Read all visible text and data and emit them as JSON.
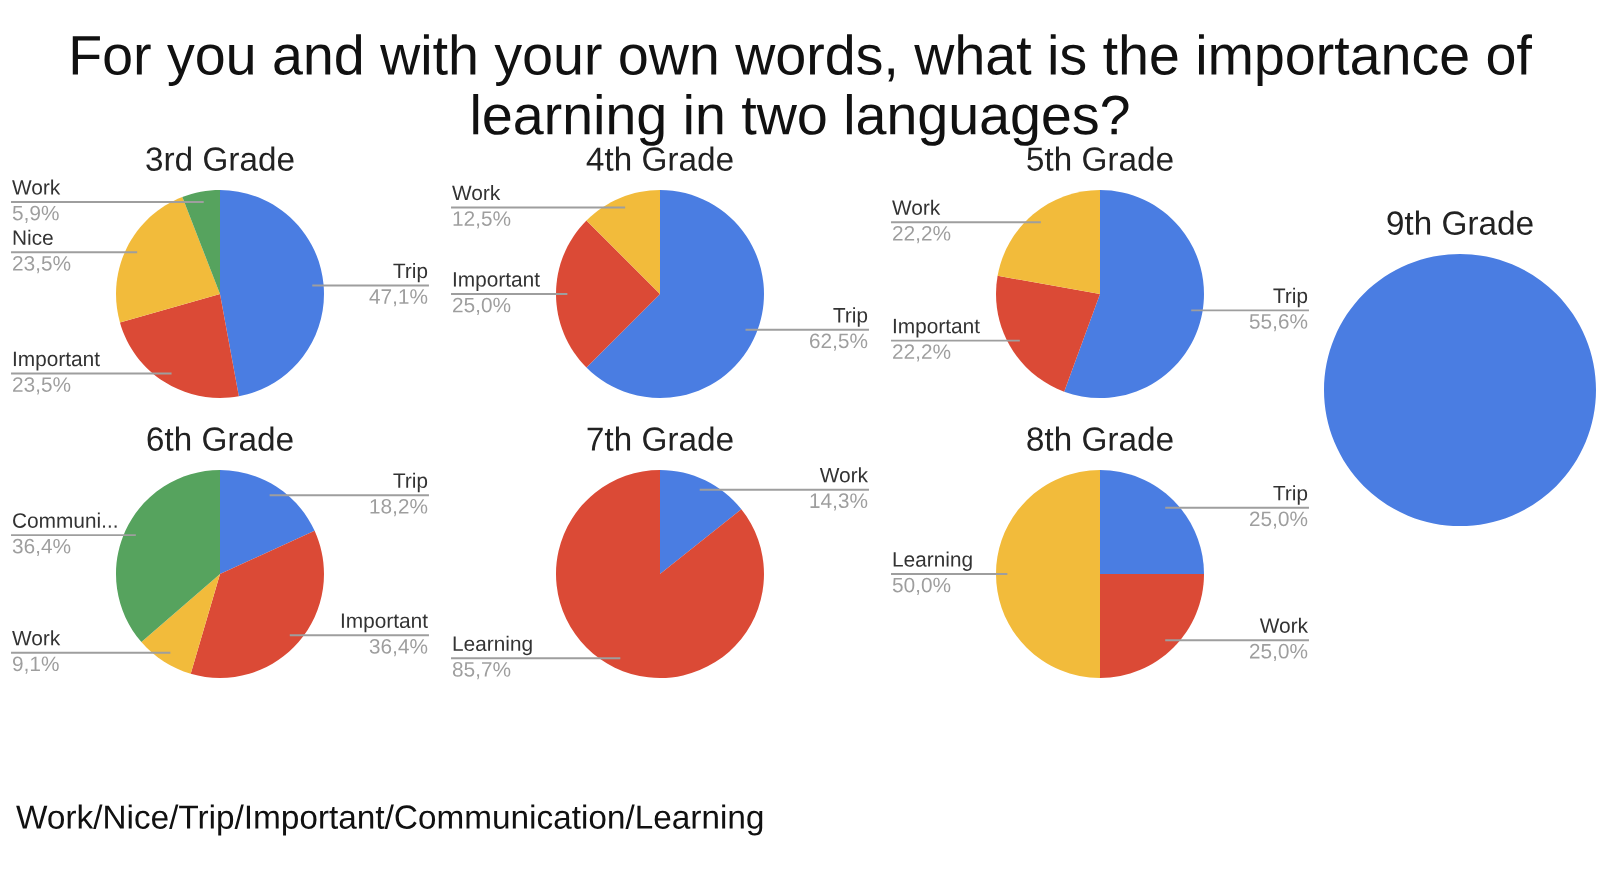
{
  "chart_data": [
    {
      "type": "pie",
      "title": "3rd Grade",
      "annotations": [
        "For you and with your own words, what is the importance of learning in two languages?",
        "Work/Nice/Trip/Important/Communication/Learning"
      ],
      "categories": [
        "Trip",
        "Important",
        "Nice",
        "Work"
      ],
      "values": [
        47.1,
        23.5,
        23.5,
        5.9
      ],
      "value_labels": [
        "47,1%",
        "23,5%",
        "23,5%",
        "5,9%"
      ],
      "colors": [
        "#4a7de2",
        "#db4a36",
        "#f2bb3b",
        "#56a35e"
      ]
    },
    {
      "type": "pie",
      "title": "4th Grade",
      "categories": [
        "Trip",
        "Important",
        "Work"
      ],
      "values": [
        62.5,
        25.0,
        12.5
      ],
      "value_labels": [
        "62,5%",
        "25,0%",
        "12,5%"
      ],
      "colors": [
        "#4a7de2",
        "#db4a36",
        "#f2bb3b"
      ]
    },
    {
      "type": "pie",
      "title": "5th Grade",
      "categories": [
        "Trip",
        "Important",
        "Work"
      ],
      "values": [
        55.6,
        22.2,
        22.2
      ],
      "value_labels": [
        "55,6%",
        "22,2%",
        "22,2%"
      ],
      "colors": [
        "#4a7de2",
        "#db4a36",
        "#f2bb3b"
      ]
    },
    {
      "type": "pie",
      "title": "6th Grade",
      "categories": [
        "Trip",
        "Important",
        "Work",
        "Communi..."
      ],
      "values": [
        18.2,
        36.4,
        9.1,
        36.4
      ],
      "value_labels": [
        "18,2%",
        "36,4%",
        "9,1%",
        "36,4%"
      ],
      "colors": [
        "#4a7de2",
        "#db4a36",
        "#f2bb3b",
        "#56a35e"
      ]
    },
    {
      "type": "pie",
      "title": "7th Grade",
      "categories": [
        "Work",
        "Learning"
      ],
      "values": [
        14.3,
        85.7
      ],
      "value_labels": [
        "14,3%",
        "85,7%"
      ],
      "colors": [
        "#4a7de2",
        "#db4a36"
      ]
    },
    {
      "type": "pie",
      "title": "8th Grade",
      "categories": [
        "Trip",
        "Work",
        "Learning"
      ],
      "values": [
        25.0,
        25.0,
        50.0
      ],
      "value_labels": [
        "25,0%",
        "25,0%",
        "50,0%"
      ],
      "colors": [
        "#4a7de2",
        "#db4a36",
        "#f2bb3b"
      ]
    },
    {
      "type": "pie",
      "title": "9th Grade",
      "categories": [
        null
      ],
      "values": [
        100
      ],
      "colors": [
        "#4a7de2"
      ]
    }
  ]
}
